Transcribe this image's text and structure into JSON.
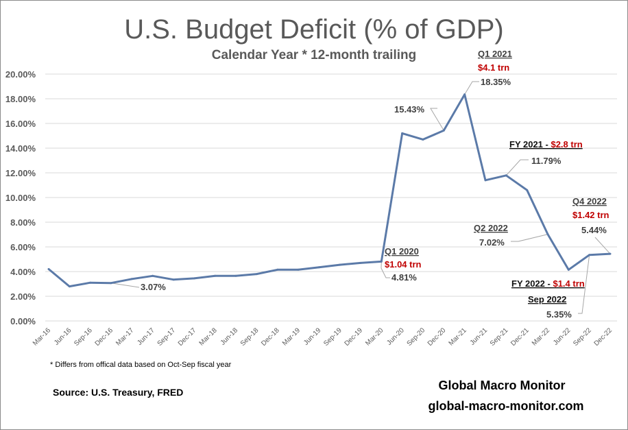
{
  "chart_data": {
    "type": "line",
    "title": "U.S. Budget Deficit (% of GDP)",
    "subtitle": "Calendar Year * 12-month trailing",
    "xlabel": "",
    "ylabel": "",
    "ylim": [
      0,
      20
    ],
    "yticks": [
      0,
      2,
      4,
      6,
      8,
      10,
      12,
      14,
      16,
      18,
      20
    ],
    "ytick_labels": [
      "0.00%",
      "2.00%",
      "4.00%",
      "6.00%",
      "8.00%",
      "10.00%",
      "12.00%",
      "14.00%",
      "16.00%",
      "18.00%",
      "20.00%"
    ],
    "grid": true,
    "legend": "none",
    "categories": [
      "Mar-16",
      "Jun-16",
      "Sep-16",
      "Dec-16",
      "Mar-17",
      "Jun-17",
      "Sep-17",
      "Dec-17",
      "Mar-18",
      "Jun-18",
      "Sep-18",
      "Dec-18",
      "Mar-19",
      "Jun-19",
      "Sep-19",
      "Dec-19",
      "Mar-20",
      "Jun-20",
      "Sep-20",
      "Dec-20",
      "Mar-21",
      "Jun-21",
      "Sep-21",
      "Dec-21",
      "Mar-22",
      "Jun-22",
      "Sep-22",
      "Dec-22"
    ],
    "series": [
      {
        "name": "Budget Deficit % of GDP",
        "color": "#5b7aa8",
        "values": [
          4.2,
          2.8,
          3.1,
          3.07,
          3.4,
          3.65,
          3.35,
          3.45,
          3.65,
          3.65,
          3.8,
          4.15,
          4.15,
          4.35,
          4.55,
          4.7,
          4.81,
          15.2,
          14.7,
          15.43,
          18.35,
          11.4,
          11.79,
          10.6,
          7.02,
          4.15,
          5.35,
          5.44
        ]
      }
    ],
    "annotations": [
      {
        "id": "dec16",
        "category": "Dec-16",
        "lines": [
          {
            "text": "3.07%",
            "style": "value"
          }
        ]
      },
      {
        "id": "q1-2020",
        "category": "Mar-20",
        "lines": [
          {
            "text": "Q1 2020",
            "style": "heading"
          },
          {
            "text": "$1.04 trn",
            "style": "red"
          },
          {
            "text": "4.81%",
            "style": "value"
          }
        ]
      },
      {
        "id": "dec20",
        "category": "Dec-20",
        "lines": [
          {
            "text": "15.43%",
            "style": "value"
          }
        ]
      },
      {
        "id": "q1-2021",
        "category": "Mar-21",
        "lines": [
          {
            "text": "Q1 2021",
            "style": "heading"
          },
          {
            "text": "$4.1 trn",
            "style": "red"
          },
          {
            "text": "18.35%",
            "style": "value"
          }
        ]
      },
      {
        "id": "fy2021",
        "category": "Sep-21",
        "lines": [
          {
            "text": "FY 2021 - ",
            "style": "heading"
          },
          {
            "text": "$2.8 trn",
            "style": "red"
          },
          {
            "text": "11.79%",
            "style": "value"
          }
        ]
      },
      {
        "id": "q2-2022",
        "category": "Mar-22",
        "lines": [
          {
            "text": "Q2 2022",
            "style": "heading"
          },
          {
            "text": "7.02%",
            "style": "value"
          }
        ]
      },
      {
        "id": "q4-2022",
        "category": "Dec-22",
        "lines": [
          {
            "text": "Q4 2022",
            "style": "heading"
          },
          {
            "text": "$1.42 trn",
            "style": "red"
          },
          {
            "text": "5.44%",
            "style": "value"
          }
        ]
      },
      {
        "id": "fy2022",
        "category": "Sep-22",
        "lines": [
          {
            "text": "FY 2022 - ",
            "style": "heading"
          },
          {
            "text": "$1.4 trn",
            "style": "red"
          },
          {
            "text": "Sep 2022",
            "style": "heading"
          },
          {
            "text": "5.35%",
            "style": "value"
          }
        ]
      }
    ],
    "footnote": "* Differs from offical data based on Oct-Sep fiscal year",
    "source": "Source:  U.S. Treasury,  FRED",
    "brand_name": "Global Macro Monitor",
    "brand_url": "global-macro-monitor.com"
  }
}
